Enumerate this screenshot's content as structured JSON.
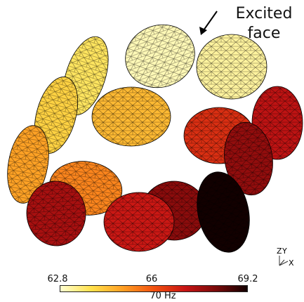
{
  "annotation": {
    "line1": "Excited",
    "line2": "face"
  },
  "colorbar": {
    "min_label": "62.8",
    "mid_label": "66",
    "max_label": "69.2",
    "unit": "70 Hz",
    "stops": [
      "#ffffd0",
      "#ffe04a",
      "#ffa024",
      "#f2520f",
      "#c81414",
      "#7a0a0a",
      "#120000"
    ]
  },
  "axes_triad": {
    "z": "Z",
    "y": "Y",
    "x": "X"
  },
  "faces": [
    {
      "value": 63.0
    },
    {
      "value": 63.7
    },
    {
      "value": 64.1
    },
    {
      "value": 64.5
    },
    {
      "value": 64.9
    },
    {
      "value": 65.3
    },
    {
      "value": 66.6
    },
    {
      "value": 67.2
    },
    {
      "value": 67.8
    },
    {
      "value": 67.5
    },
    {
      "value": 68.2
    },
    {
      "value": 69.2
    },
    {
      "value": 67.9
    },
    {
      "value": 67.0
    },
    {
      "value": 66.8
    },
    {
      "value": 67.4
    },
    {
      "value": 63.2
    }
  ]
}
